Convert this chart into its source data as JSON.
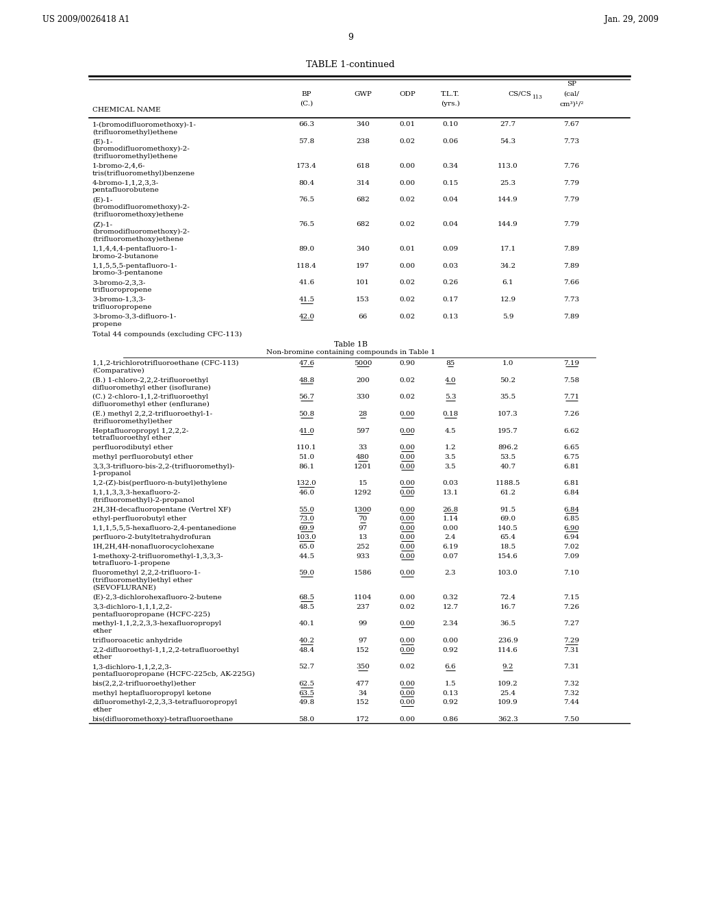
{
  "header_left": "US 2009/0026418 A1",
  "header_right": "Jan. 29, 2009",
  "page_number": "9",
  "table_title": "TABLE 1-continued",
  "bg_color": "#ffffff",
  "text_color": "#000000",
  "section2_title": "Table 1B",
  "section2_subtitle": "Non-bromine containing compounds in Table 1",
  "rows_part1": [
    [
      "1-(bromodifluoromethoxy)-1-\n(trifluoromethyl)ethene",
      "66.3",
      "340",
      "0.01",
      "0.10",
      "27.7",
      "7.67",
      false
    ],
    [
      "(E)-1-\n(bromodifluoromethoxy)-2-\n(trifluoromethyl)ethene",
      "57.8",
      "238",
      "0.02",
      "0.06",
      "54.3",
      "7.73",
      false
    ],
    [
      "1-bromo-2,4,6-\ntris(trifluoromethyl)benzene",
      "173.4",
      "618",
      "0.00",
      "0.34",
      "113.0",
      "7.76",
      false
    ],
    [
      "4-bromo-1,1,2,3,3-\npentafluorobutene",
      "80.4",
      "314",
      "0.00",
      "0.15",
      "25.3",
      "7.79",
      false
    ],
    [
      "(E)-1-\n(bromodifluoromethoxy)-2-\n(trifluoromethoxy)ethene",
      "76.5",
      "682",
      "0.02",
      "0.04",
      "144.9",
      "7.79",
      false
    ],
    [
      "(Z)-1-\n(bromodifluoromethoxy)-2-\n(trifluoromethoxy)ethene",
      "76.5",
      "682",
      "0.02",
      "0.04",
      "144.9",
      "7.79",
      false
    ],
    [
      "1,1,4,4,4-pentafluoro-1-\nbromo-2-butanone",
      "89.0",
      "340",
      "0.01",
      "0.09",
      "17.1",
      "7.89",
      false
    ],
    [
      "1,1,5,5,5-pentafluoro-1-\nbromo-3-pentanone",
      "118.4",
      "197",
      "0.00",
      "0.03",
      "34.2",
      "7.89",
      false
    ],
    [
      "3-bromo-2,3,3-\ntrifluoropropene",
      "41.6",
      "101",
      "0.02",
      "0.26",
      "6.1",
      "7.66",
      false
    ],
    [
      "3-bromo-1,3,3-\ntrifluoropropene",
      "41.5",
      "153",
      "0.02",
      "0.17",
      "12.9",
      "7.73",
      true
    ],
    [
      "3-bromo-3,3-difluoro-1-\npropene",
      "42.0",
      "66",
      "0.02",
      "0.13",
      "5.9",
      "7.89",
      true
    ]
  ],
  "footnote1": "Total 44 compounds (excluding CFC-113)",
  "rows_part2": [
    {
      "name": "1,1,2-trichlorotrifluoroethane (CFC-113)\n(Comparative)",
      "bp": "47.6",
      "gwp": "5000",
      "odp": "0.90",
      "tlt": "85",
      "cscs": "1.0",
      "sp": "7.19",
      "ul_bp": true,
      "ul_gwp": true,
      "ul_odp": false,
      "ul_tlt": true,
      "ul_cscs": false,
      "ul_sp": true
    },
    {
      "name": "(B.) 1-chloro-2,2,2-trifluoroethyl\ndifluoromethyl ether (isoflurane)",
      "bp": "48.8",
      "gwp": "200",
      "odp": "0.02",
      "tlt": "4.0",
      "cscs": "50.2",
      "sp": "7.58",
      "ul_bp": true,
      "ul_gwp": false,
      "ul_odp": false,
      "ul_tlt": true,
      "ul_cscs": false,
      "ul_sp": false
    },
    {
      "name": "(C.) 2-chloro-1,1,2-trifluoroethyl\ndifluoromethyl ether (enflurane)",
      "bp": "56.7",
      "gwp": "330",
      "odp": "0.02",
      "tlt": "5.3",
      "cscs": "35.5",
      "sp": "7.71",
      "ul_bp": true,
      "ul_gwp": false,
      "ul_odp": false,
      "ul_tlt": true,
      "ul_cscs": false,
      "ul_sp": true
    },
    {
      "name": "(E.) methyl 2,2,2-trifluoroethyl-1-\n(trifluoromethyl)ether",
      "bp": "50.8",
      "gwp": "28",
      "odp": "0.00",
      "tlt": "0.18",
      "cscs": "107.3",
      "sp": "7.26",
      "ul_bp": true,
      "ul_gwp": true,
      "ul_odp": true,
      "ul_tlt": true,
      "ul_cscs": false,
      "ul_sp": false
    },
    {
      "name": "Heptafluoropropyl 1,2,2,2-\ntetrafluoroethyl ether",
      "bp": "41.0",
      "gwp": "597",
      "odp": "0.00",
      "tlt": "4.5",
      "cscs": "195.7",
      "sp": "6.62",
      "ul_bp": true,
      "ul_gwp": false,
      "ul_odp": true,
      "ul_tlt": false,
      "ul_cscs": false,
      "ul_sp": false
    },
    {
      "name": "perfluorodibutyl ether",
      "bp": "110.1",
      "gwp": "33",
      "odp": "0.00",
      "tlt": "1.2",
      "cscs": "896.2",
      "sp": "6.65",
      "ul_bp": false,
      "ul_gwp": false,
      "ul_odp": true,
      "ul_tlt": false,
      "ul_cscs": false,
      "ul_sp": false
    },
    {
      "name": "methyl perfluorobutyl ether",
      "bp": "51.0",
      "gwp": "480",
      "odp": "0.00",
      "tlt": "3.5",
      "cscs": "53.5",
      "sp": "6.75",
      "ul_bp": false,
      "ul_gwp": true,
      "ul_odp": true,
      "ul_tlt": false,
      "ul_cscs": false,
      "ul_sp": false
    },
    {
      "name": "3,3,3-trifluoro-bis-2,2-(trifluoromethyl)-\n1-propanol",
      "bp": "86.1",
      "gwp": "1201",
      "odp": "0.00",
      "tlt": "3.5",
      "cscs": "40.7",
      "sp": "6.81",
      "ul_bp": false,
      "ul_gwp": false,
      "ul_odp": true,
      "ul_tlt": false,
      "ul_cscs": false,
      "ul_sp": false
    },
    {
      "name": "1,2-(Z)-bis(perfluoro-n-butyl)ethylene",
      "bp": "132.0",
      "gwp": "15",
      "odp": "0.00",
      "tlt": "0.03",
      "cscs": "1188.5",
      "sp": "6.81",
      "ul_bp": true,
      "ul_gwp": false,
      "ul_odp": true,
      "ul_tlt": false,
      "ul_cscs": false,
      "ul_sp": false
    },
    {
      "name": "1,1,1,3,3,3-hexafluoro-2-\n(trifluoromethyl)-2-propanol",
      "bp": "46.0",
      "gwp": "1292",
      "odp": "0.00",
      "tlt": "13.1",
      "cscs": "61.2",
      "sp": "6.84",
      "ul_bp": false,
      "ul_gwp": false,
      "ul_odp": true,
      "ul_tlt": false,
      "ul_cscs": false,
      "ul_sp": false
    },
    {
      "name": "2H,3H-decafluoropentane (Vertrel XF)",
      "bp": "55.0",
      "gwp": "1300",
      "odp": "0.00",
      "tlt": "26.8",
      "cscs": "91.5",
      "sp": "6.84",
      "ul_bp": true,
      "ul_gwp": true,
      "ul_odp": true,
      "ul_tlt": true,
      "ul_cscs": false,
      "ul_sp": true
    },
    {
      "name": "ethyl-perfluorobutyl ether",
      "bp": "73.0",
      "gwp": "70",
      "odp": "0.00",
      "tlt": "1.14",
      "cscs": "69.0",
      "sp": "6.85",
      "ul_bp": true,
      "ul_gwp": true,
      "ul_odp": true,
      "ul_tlt": false,
      "ul_cscs": false,
      "ul_sp": false
    },
    {
      "name": "1,1,1,5,5,5-hexafluoro-2,4-pentanedione",
      "bp": "69.9",
      "gwp": "97",
      "odp": "0.00",
      "tlt": "0.00",
      "cscs": "140.5",
      "sp": "6.90",
      "ul_bp": true,
      "ul_gwp": false,
      "ul_odp": true,
      "ul_tlt": false,
      "ul_cscs": false,
      "ul_sp": true
    },
    {
      "name": "perfluoro-2-butyltetrahydrofuran",
      "bp": "103.0",
      "gwp": "13",
      "odp": "0.00",
      "tlt": "2.4",
      "cscs": "65.4",
      "sp": "6.94",
      "ul_bp": true,
      "ul_gwp": false,
      "ul_odp": true,
      "ul_tlt": false,
      "ul_cscs": false,
      "ul_sp": false
    },
    {
      "name": "1H,2H,4H-nonafluorocyclohexane",
      "bp": "65.0",
      "gwp": "252",
      "odp": "0.00",
      "tlt": "6.19",
      "cscs": "18.5",
      "sp": "7.02",
      "ul_bp": false,
      "ul_gwp": false,
      "ul_odp": true,
      "ul_tlt": false,
      "ul_cscs": false,
      "ul_sp": false
    },
    {
      "name": "1-methoxy-2-trifluoromethyl-1,3,3,3-\ntetrafluoro-1-propene",
      "bp": "44.5",
      "gwp": "933",
      "odp": "0.00",
      "tlt": "0.07",
      "cscs": "154.6",
      "sp": "7.09",
      "ul_bp": false,
      "ul_gwp": false,
      "ul_odp": true,
      "ul_tlt": false,
      "ul_cscs": false,
      "ul_sp": false
    },
    {
      "name": "fluoromethyl 2,2,2-trifluoro-1-\n(trifluoromethyl)ethyl ether\n(SEVOFLURANE)",
      "bp": "59.0",
      "gwp": "1586",
      "odp": "0.00",
      "tlt": "2.3",
      "cscs": "103.0",
      "sp": "7.10",
      "ul_bp": true,
      "ul_gwp": false,
      "ul_odp": true,
      "ul_tlt": false,
      "ul_cscs": false,
      "ul_sp": false
    },
    {
      "name": "(E)-2,3-dichlorohexafluoro-2-butene",
      "bp": "68.5",
      "gwp": "1104",
      "odp": "0.00",
      "tlt": "0.32",
      "cscs": "72.4",
      "sp": "7.15",
      "ul_bp": true,
      "ul_gwp": false,
      "ul_odp": false,
      "ul_tlt": false,
      "ul_cscs": false,
      "ul_sp": false
    },
    {
      "name": "3,3-dichloro-1,1,1,2,2-\npentafluoropropane (HCFC-225)",
      "bp": "48.5",
      "gwp": "237",
      "odp": "0.02",
      "tlt": "12.7",
      "cscs": "16.7",
      "sp": "7.26",
      "ul_bp": false,
      "ul_gwp": false,
      "ul_odp": false,
      "ul_tlt": false,
      "ul_cscs": false,
      "ul_sp": false
    },
    {
      "name": "methyl-1,1,2,2,3,3-hexafluoropropyl\nether",
      "bp": "40.1",
      "gwp": "99",
      "odp": "0.00",
      "tlt": "2.34",
      "cscs": "36.5",
      "sp": "7.27",
      "ul_bp": false,
      "ul_gwp": false,
      "ul_odp": true,
      "ul_tlt": false,
      "ul_cscs": false,
      "ul_sp": false
    },
    {
      "name": "trifluoroacetic anhydride",
      "bp": "40.2",
      "gwp": "97",
      "odp": "0.00",
      "tlt": "0.00",
      "cscs": "236.9",
      "sp": "7.29",
      "ul_bp": true,
      "ul_gwp": false,
      "ul_odp": true,
      "ul_tlt": false,
      "ul_cscs": false,
      "ul_sp": true
    },
    {
      "name": "2,2-difluoroethyl-1,1,2,2-tetrafluoroethyl\nether",
      "bp": "48.4",
      "gwp": "152",
      "odp": "0.00",
      "tlt": "0.92",
      "cscs": "114.6",
      "sp": "7.31",
      "ul_bp": false,
      "ul_gwp": false,
      "ul_odp": true,
      "ul_tlt": false,
      "ul_cscs": false,
      "ul_sp": false
    },
    {
      "name": "1,3-dichloro-1,1,2,2,3-\npentafluoropropane (HCFC-225cb, AK-225G)",
      "bp": "52.7",
      "gwp": "350",
      "odp": "0.02",
      "tlt": "6.6",
      "cscs": "9.2",
      "sp": "7.31",
      "ul_bp": false,
      "ul_gwp": true,
      "ul_odp": false,
      "ul_tlt": true,
      "ul_cscs": true,
      "ul_sp": false
    },
    {
      "name": "bis(2,2,2-trifluoroethyl)ether",
      "bp": "62.5",
      "gwp": "477",
      "odp": "0.00",
      "tlt": "1.5",
      "cscs": "109.2",
      "sp": "7.32",
      "ul_bp": true,
      "ul_gwp": false,
      "ul_odp": true,
      "ul_tlt": false,
      "ul_cscs": false,
      "ul_sp": false
    },
    {
      "name": "methyl heptafluoropropyl ketone",
      "bp": "63.5",
      "gwp": "34",
      "odp": "0.00",
      "tlt": "0.13",
      "cscs": "25.4",
      "sp": "7.32",
      "ul_bp": true,
      "ul_gwp": false,
      "ul_odp": true,
      "ul_tlt": false,
      "ul_cscs": false,
      "ul_sp": false
    },
    {
      "name": "difluoromethyl-2,2,3,3-tetrafluoropropyl\nether",
      "bp": "49.8",
      "gwp": "152",
      "odp": "0.00",
      "tlt": "0.92",
      "cscs": "109.9",
      "sp": "7.44",
      "ul_bp": false,
      "ul_gwp": false,
      "ul_odp": true,
      "ul_tlt": false,
      "ul_cscs": false,
      "ul_sp": false
    },
    {
      "name": "bis(difluoromethoxy)-tetrafluoroethane",
      "bp": "58.0",
      "gwp": "172",
      "odp": "0.00",
      "tlt": "0.86",
      "cscs": "362.3",
      "sp": "7.50",
      "ul_bp": true,
      "ul_gwp": false,
      "ul_odp": true,
      "ul_tlt": false,
      "ul_cscs": false,
      "ul_sp": false
    }
  ]
}
